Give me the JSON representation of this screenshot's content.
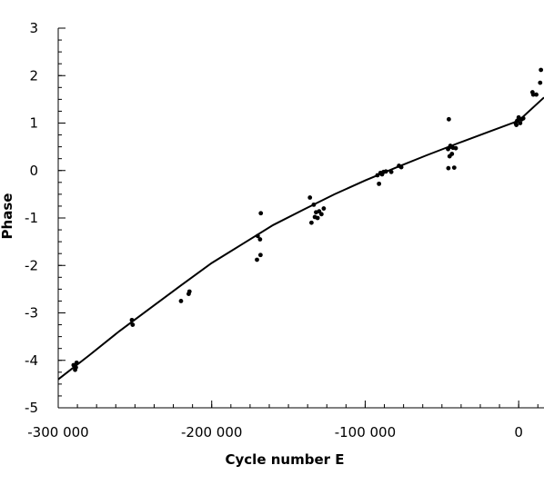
{
  "chart_data": {
    "type": "scatter",
    "title": "",
    "xlabel": "Cycle number E",
    "ylabel": "Phase",
    "xlim": [
      -300000,
      16500
    ],
    "ylim": [
      -5,
      3
    ],
    "x_ticks": [
      -300000,
      -200000,
      -100000,
      0
    ],
    "x_tick_labels": [
      "-300 000",
      "-200 000",
      "-100 000",
      "0"
    ],
    "x_minor_step": 12500,
    "y_ticks": [
      -5,
      -4,
      -3,
      -2,
      -1,
      0,
      1,
      2,
      3
    ],
    "y_tick_labels": [
      "-5",
      "-4",
      "-3",
      "-2",
      "-1",
      "0",
      "1",
      "2",
      "3"
    ],
    "y_minor_step": 0.25,
    "grid": false,
    "series": [
      {
        "kind": "points",
        "points": [
          [
            -290000,
            -4.1
          ],
          [
            -289000,
            -4.2
          ],
          [
            -288500,
            -4.15
          ],
          [
            -288000,
            -4.05
          ],
          [
            -252000,
            -3.15
          ],
          [
            -251500,
            -3.25
          ],
          [
            -220000,
            -2.75
          ],
          [
            -215000,
            -2.6
          ],
          [
            -214500,
            -2.55
          ],
          [
            -170000,
            -1.38
          ],
          [
            -168000,
            -0.9
          ],
          [
            -168500,
            -1.45
          ],
          [
            -170500,
            -1.88
          ],
          [
            -168200,
            -1.78
          ],
          [
            -136000,
            -0.57
          ],
          [
            -135000,
            -1.1
          ],
          [
            -133500,
            -0.72
          ],
          [
            -132800,
            -0.98
          ],
          [
            -132000,
            -0.88
          ],
          [
            -131000,
            -1.0
          ],
          [
            -130000,
            -0.86
          ],
          [
            -128500,
            -0.92
          ],
          [
            -127000,
            -0.8
          ],
          [
            -92000,
            -0.1
          ],
          [
            -91000,
            -0.28
          ],
          [
            -90000,
            -0.05
          ],
          [
            -89000,
            -0.08
          ],
          [
            -88000,
            -0.03
          ],
          [
            -86500,
            -0.02
          ],
          [
            -83000,
            -0.03
          ],
          [
            -78000,
            0.1
          ],
          [
            -76500,
            0.07
          ],
          [
            -46000,
            0.45
          ],
          [
            -45500,
            1.08
          ],
          [
            -45000,
            0.3
          ],
          [
            -44500,
            0.52
          ],
          [
            -44000,
            0.5
          ],
          [
            -43500,
            0.35
          ],
          [
            -42800,
            0.48
          ],
          [
            -42000,
            0.06
          ],
          [
            -45800,
            0.05
          ],
          [
            -41000,
            0.47
          ],
          [
            -2000,
            1.0
          ],
          [
            -1500,
            0.96
          ],
          [
            -1000,
            1.05
          ],
          [
            0,
            1.12
          ],
          [
            1000,
            1.0
          ],
          [
            2000,
            1.08
          ],
          [
            3000,
            1.1
          ],
          [
            9000,
            1.65
          ],
          [
            9500,
            1.6
          ],
          [
            11500,
            1.6
          ],
          [
            14000,
            1.85
          ],
          [
            14500,
            2.12
          ]
        ]
      },
      {
        "kind": "fit",
        "points": [
          [
            -300000,
            -4.4
          ],
          [
            -280000,
            -3.9
          ],
          [
            -260000,
            -3.38
          ],
          [
            -240000,
            -2.9
          ],
          [
            -220000,
            -2.42
          ],
          [
            -200000,
            -1.95
          ],
          [
            -180000,
            -1.55
          ],
          [
            -160000,
            -1.15
          ],
          [
            -140000,
            -0.82
          ],
          [
            -120000,
            -0.5
          ],
          [
            -100000,
            -0.21
          ],
          [
            -80000,
            0.06
          ],
          [
            -60000,
            0.32
          ],
          [
            -40000,
            0.57
          ],
          [
            -20000,
            0.81
          ],
          [
            0,
            1.05
          ],
          [
            16500,
            1.54
          ]
        ]
      }
    ]
  }
}
